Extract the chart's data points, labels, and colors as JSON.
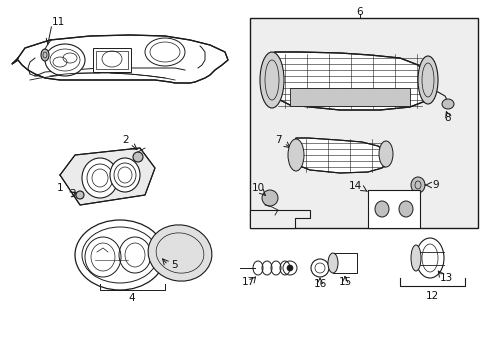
{
  "bg_color": "#ffffff",
  "line_color": "#1a1a1a",
  "label_color": "#111111",
  "fig_width": 4.89,
  "fig_height": 3.6,
  "dpi": 100,
  "gray_fill": "#d8d8d8",
  "light_gray": "#e8e8e8",
  "mid_gray": "#c0c0c0"
}
